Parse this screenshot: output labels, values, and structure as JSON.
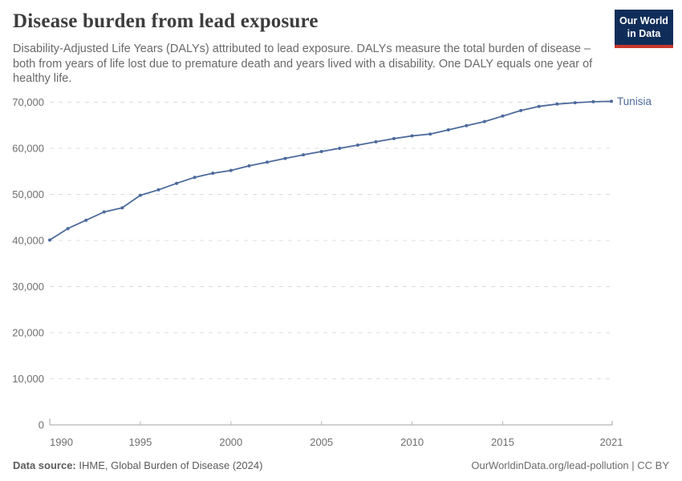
{
  "header": {
    "title": "Disease burden from lead exposure",
    "subtitle": "Disability-Adjusted Life Years (DALYs) attributed to lead exposure. DALYs measure the total burden of disease – both from years of life lost due to premature death and years lived with a disability. One DALY equals one year of healthy life.",
    "logo": {
      "line1": "Our World",
      "line2": "in Data"
    }
  },
  "footer": {
    "source_label": "Data source:",
    "source_text": " IHME, Global Burden of Disease (2024)",
    "link_text": "OurWorldinData.org/lead-pollution | CC BY"
  },
  "colors": {
    "line": "#4c6a9c",
    "gridline": "#dcdcdc",
    "axis": "#a3a3a3",
    "tick": "#b5b5b5",
    "logo_navy": "#102d59",
    "logo_red": "#c9372c"
  },
  "chart_data": {
    "type": "line",
    "title": "Disease burden from lead exposure",
    "series": [
      {
        "name": "Tunisia",
        "x": [
          1990,
          1991,
          1992,
          1993,
          1994,
          1995,
          1996,
          1997,
          1998,
          1999,
          2000,
          2001,
          2002,
          2003,
          2004,
          2005,
          2006,
          2007,
          2008,
          2009,
          2010,
          2011,
          2012,
          2013,
          2014,
          2015,
          2016,
          2017,
          2018,
          2019,
          2020,
          2021
        ],
        "values": [
          40100,
          42600,
          44400,
          46200,
          47100,
          49800,
          51000,
          52400,
          53700,
          54600,
          55200,
          56200,
          57000,
          57800,
          58600,
          59300,
          60000,
          60700,
          61400,
          62100,
          62700,
          63100,
          64000,
          64900,
          65800,
          67000,
          68200,
          69100,
          69600,
          69900,
          70100,
          70200
        ]
      }
    ],
    "xlabel": "",
    "ylabel": "",
    "xticks": [
      1990,
      1995,
      2000,
      2005,
      2010,
      2015,
      2021
    ],
    "yticks": [
      0,
      10000,
      20000,
      30000,
      40000,
      50000,
      60000,
      70000
    ],
    "xlim": [
      1990,
      2021
    ],
    "ylim": [
      0,
      70000
    ],
    "grid": "horizontal-dashed",
    "legend_position": "end-of-line-label"
  }
}
